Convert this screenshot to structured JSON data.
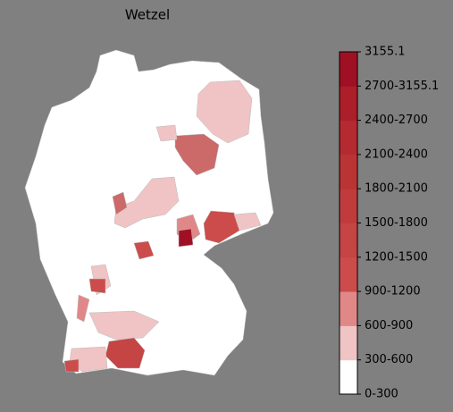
{
  "title": "Wetzel",
  "legend": {
    "labels": [
      "0-300",
      "300-600",
      "600-900",
      "900-1200",
      "1200-1500",
      "1500-1800",
      "1800-2100",
      "2100-2400",
      "2400-2700",
      "2700-3155.1",
      "3155.1"
    ],
    "colors": [
      "#ffffff",
      "#f0c4c4",
      "#e08888",
      "#cc4c4c",
      "#c54444",
      "#c03c3c",
      "#bb3434",
      "#b42a30",
      "#ab1e2a",
      "#a01024"
    ]
  }
}
